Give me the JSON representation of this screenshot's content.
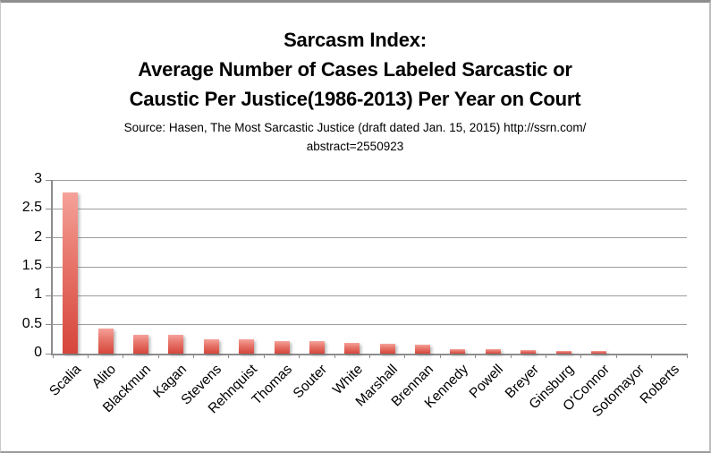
{
  "chart_data": {
    "type": "bar",
    "title_lines": [
      "Sarcasm Index:",
      "Average Number of Cases Labeled Sarcastic or",
      "Caustic Per Justice(1986-2013) Per Year on Court"
    ],
    "source_lines": [
      "Source: Hasen, The Most Sarcastic Justice (draft dated Jan. 15, 2015) http://ssrn.com/",
      "abstract=2550923"
    ],
    "categories": [
      "Scalia",
      "Alito",
      "Blackmun",
      "Kagan",
      "Stevens",
      "Rehnquist",
      "Thomas",
      "Souter",
      "White",
      "Marshall",
      "Brennan",
      "Kennedy",
      "Powell",
      "Breyer",
      "Ginsburg",
      "O'Connor",
      "Sotomayor",
      "Roberts"
    ],
    "values": [
      2.78,
      0.43,
      0.33,
      0.33,
      0.25,
      0.24,
      0.22,
      0.21,
      0.19,
      0.17,
      0.15,
      0.08,
      0.07,
      0.06,
      0.05,
      0.04,
      0,
      0
    ],
    "xlabel": "",
    "ylabel": "",
    "ylim": [
      0,
      3
    ],
    "y_ticks": [
      0,
      0.5,
      1,
      1.5,
      2,
      2.5,
      3
    ],
    "y_tick_labels": [
      "0",
      "0.5",
      "1",
      "1.5",
      "2",
      "2.5",
      "3"
    ],
    "grid": true,
    "legend": false,
    "colors": {
      "bar_gradient_top": "#f5a29a",
      "bar_gradient_mid": "#e8786d",
      "bar_gradient_bottom": "#d6453b",
      "gridline": "#9d9d9d",
      "axis": "#8c8c8c",
      "text": "#000000"
    }
  }
}
